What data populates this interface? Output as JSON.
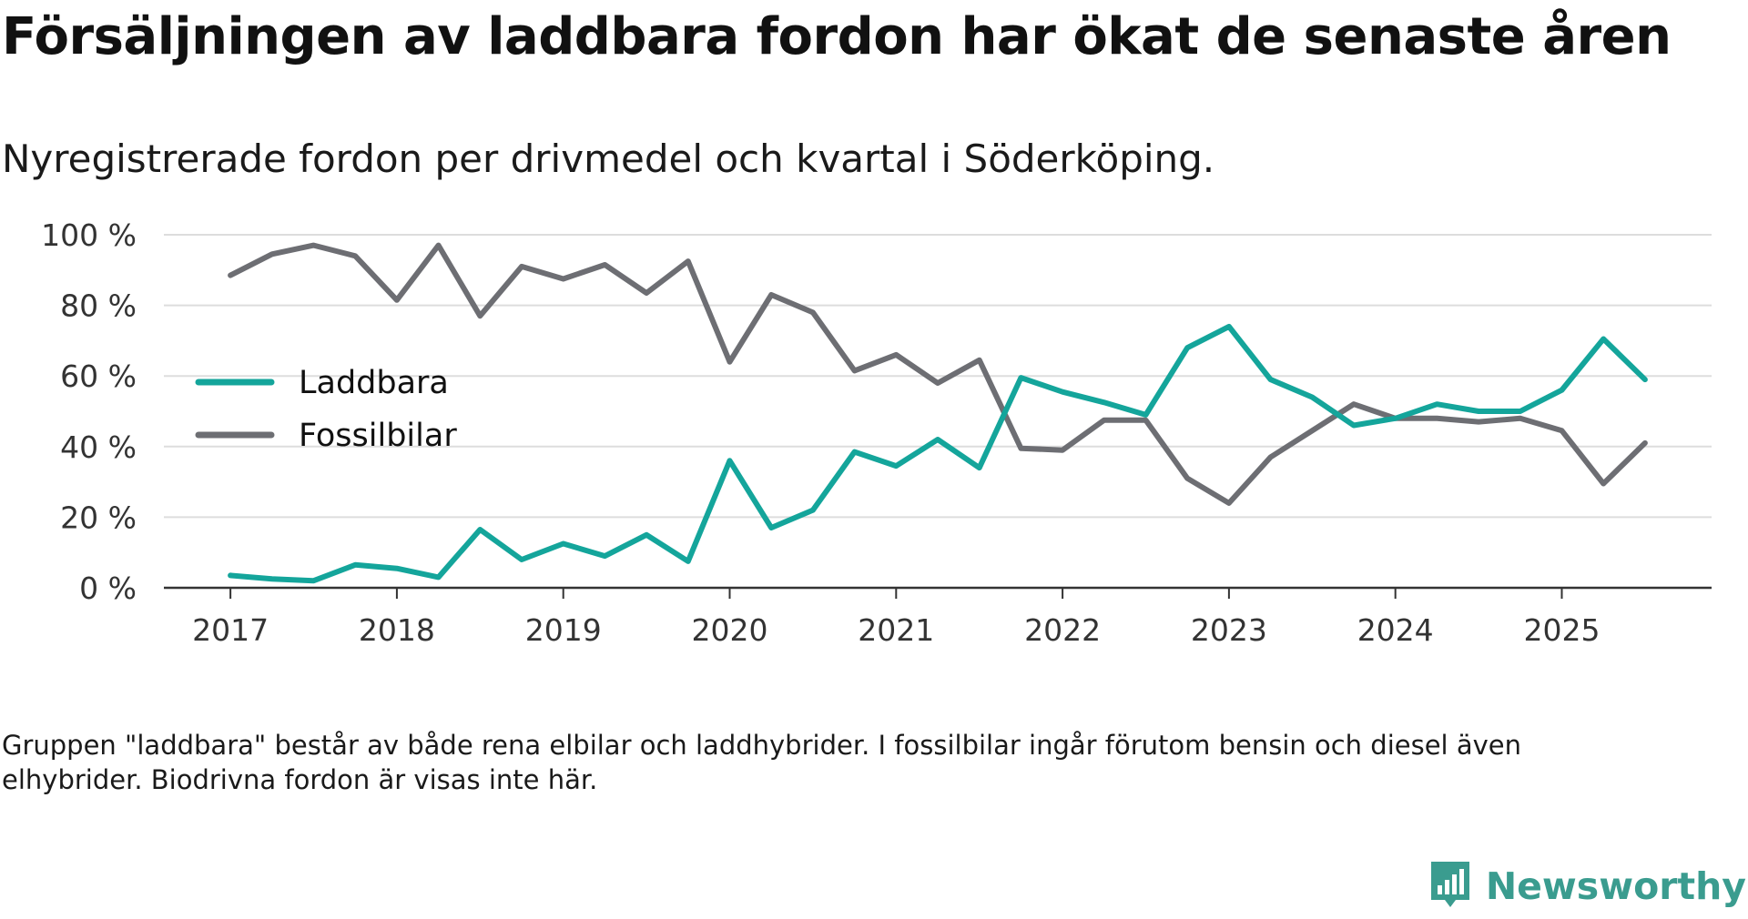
{
  "title": "Försäljningen av laddbara fordon har ökat de senaste åren",
  "subtitle": "Nyregistrerade fordon per drivmedel och kvartal i Söderköping.",
  "footnote": "Gruppen \"laddbara\" består av både rena elbilar och laddhybrider. I fossilbilar ingår förutom bensin och diesel även elhybrider. Biodrivna fordon är visas inte här.",
  "brand": {
    "name": "Newsworthy",
    "icon": "newsworthy-logo-icon"
  },
  "colors": {
    "laddbara": "#14a59b",
    "fossilbilar": "#6d6e73",
    "grid": "#dddddd",
    "axis": "#333333",
    "text": "#333333"
  },
  "chart_data": {
    "type": "line",
    "title": "Försäljningen av laddbara fordon har ökat de senaste åren",
    "xlabel": "",
    "ylabel": "",
    "ylim": [
      0,
      100
    ],
    "yticks": [
      0,
      20,
      40,
      60,
      80,
      100
    ],
    "ytick_labels": [
      "0 %",
      "20 %",
      "40 %",
      "60 %",
      "80 %",
      "100 %"
    ],
    "xlim": [
      2016.6,
      2025.9
    ],
    "xticks": [
      2017,
      2018,
      2019,
      2020,
      2021,
      2022,
      2023,
      2024,
      2025
    ],
    "xtick_labels": [
      "2017",
      "2018",
      "2019",
      "2020",
      "2021",
      "2022",
      "2023",
      "2024",
      "2025"
    ],
    "grid": true,
    "legend": "left-middle",
    "x": [
      2017.0,
      2017.25,
      2017.5,
      2017.75,
      2018.0,
      2018.25,
      2018.5,
      2018.75,
      2019.0,
      2019.25,
      2019.5,
      2019.75,
      2020.0,
      2020.25,
      2020.5,
      2020.75,
      2021.0,
      2021.25,
      2021.5,
      2021.75,
      2022.0,
      2022.25,
      2022.5,
      2022.75,
      2023.0,
      2023.25,
      2023.5,
      2023.75,
      2024.0,
      2024.25,
      2024.5,
      2024.75,
      2025.0,
      2025.25,
      2025.5
    ],
    "series": [
      {
        "name": "Laddbara",
        "color": "#14a59b",
        "values": [
          3.5,
          2.5,
          2,
          6.5,
          5.5,
          3,
          16.5,
          8,
          12.5,
          9,
          15,
          7.5,
          36,
          17,
          22,
          38.5,
          34.5,
          42,
          34,
          59.5,
          55.5,
          52.5,
          49,
          68,
          74,
          59,
          54,
          46,
          48,
          52,
          50,
          50,
          56,
          70.5,
          59
        ]
      },
      {
        "name": "Fossilbilar",
        "color": "#6d6e73",
        "values": [
          88.5,
          94.5,
          97,
          94,
          81.5,
          97,
          77,
          91,
          87.5,
          91.5,
          83.5,
          92.5,
          64,
          83,
          78,
          61.5,
          66,
          58,
          64.5,
          39.5,
          39,
          47.5,
          47.5,
          31,
          24,
          37,
          44.5,
          52,
          48,
          48,
          47,
          48,
          44.5,
          29.5,
          41
        ]
      }
    ]
  }
}
